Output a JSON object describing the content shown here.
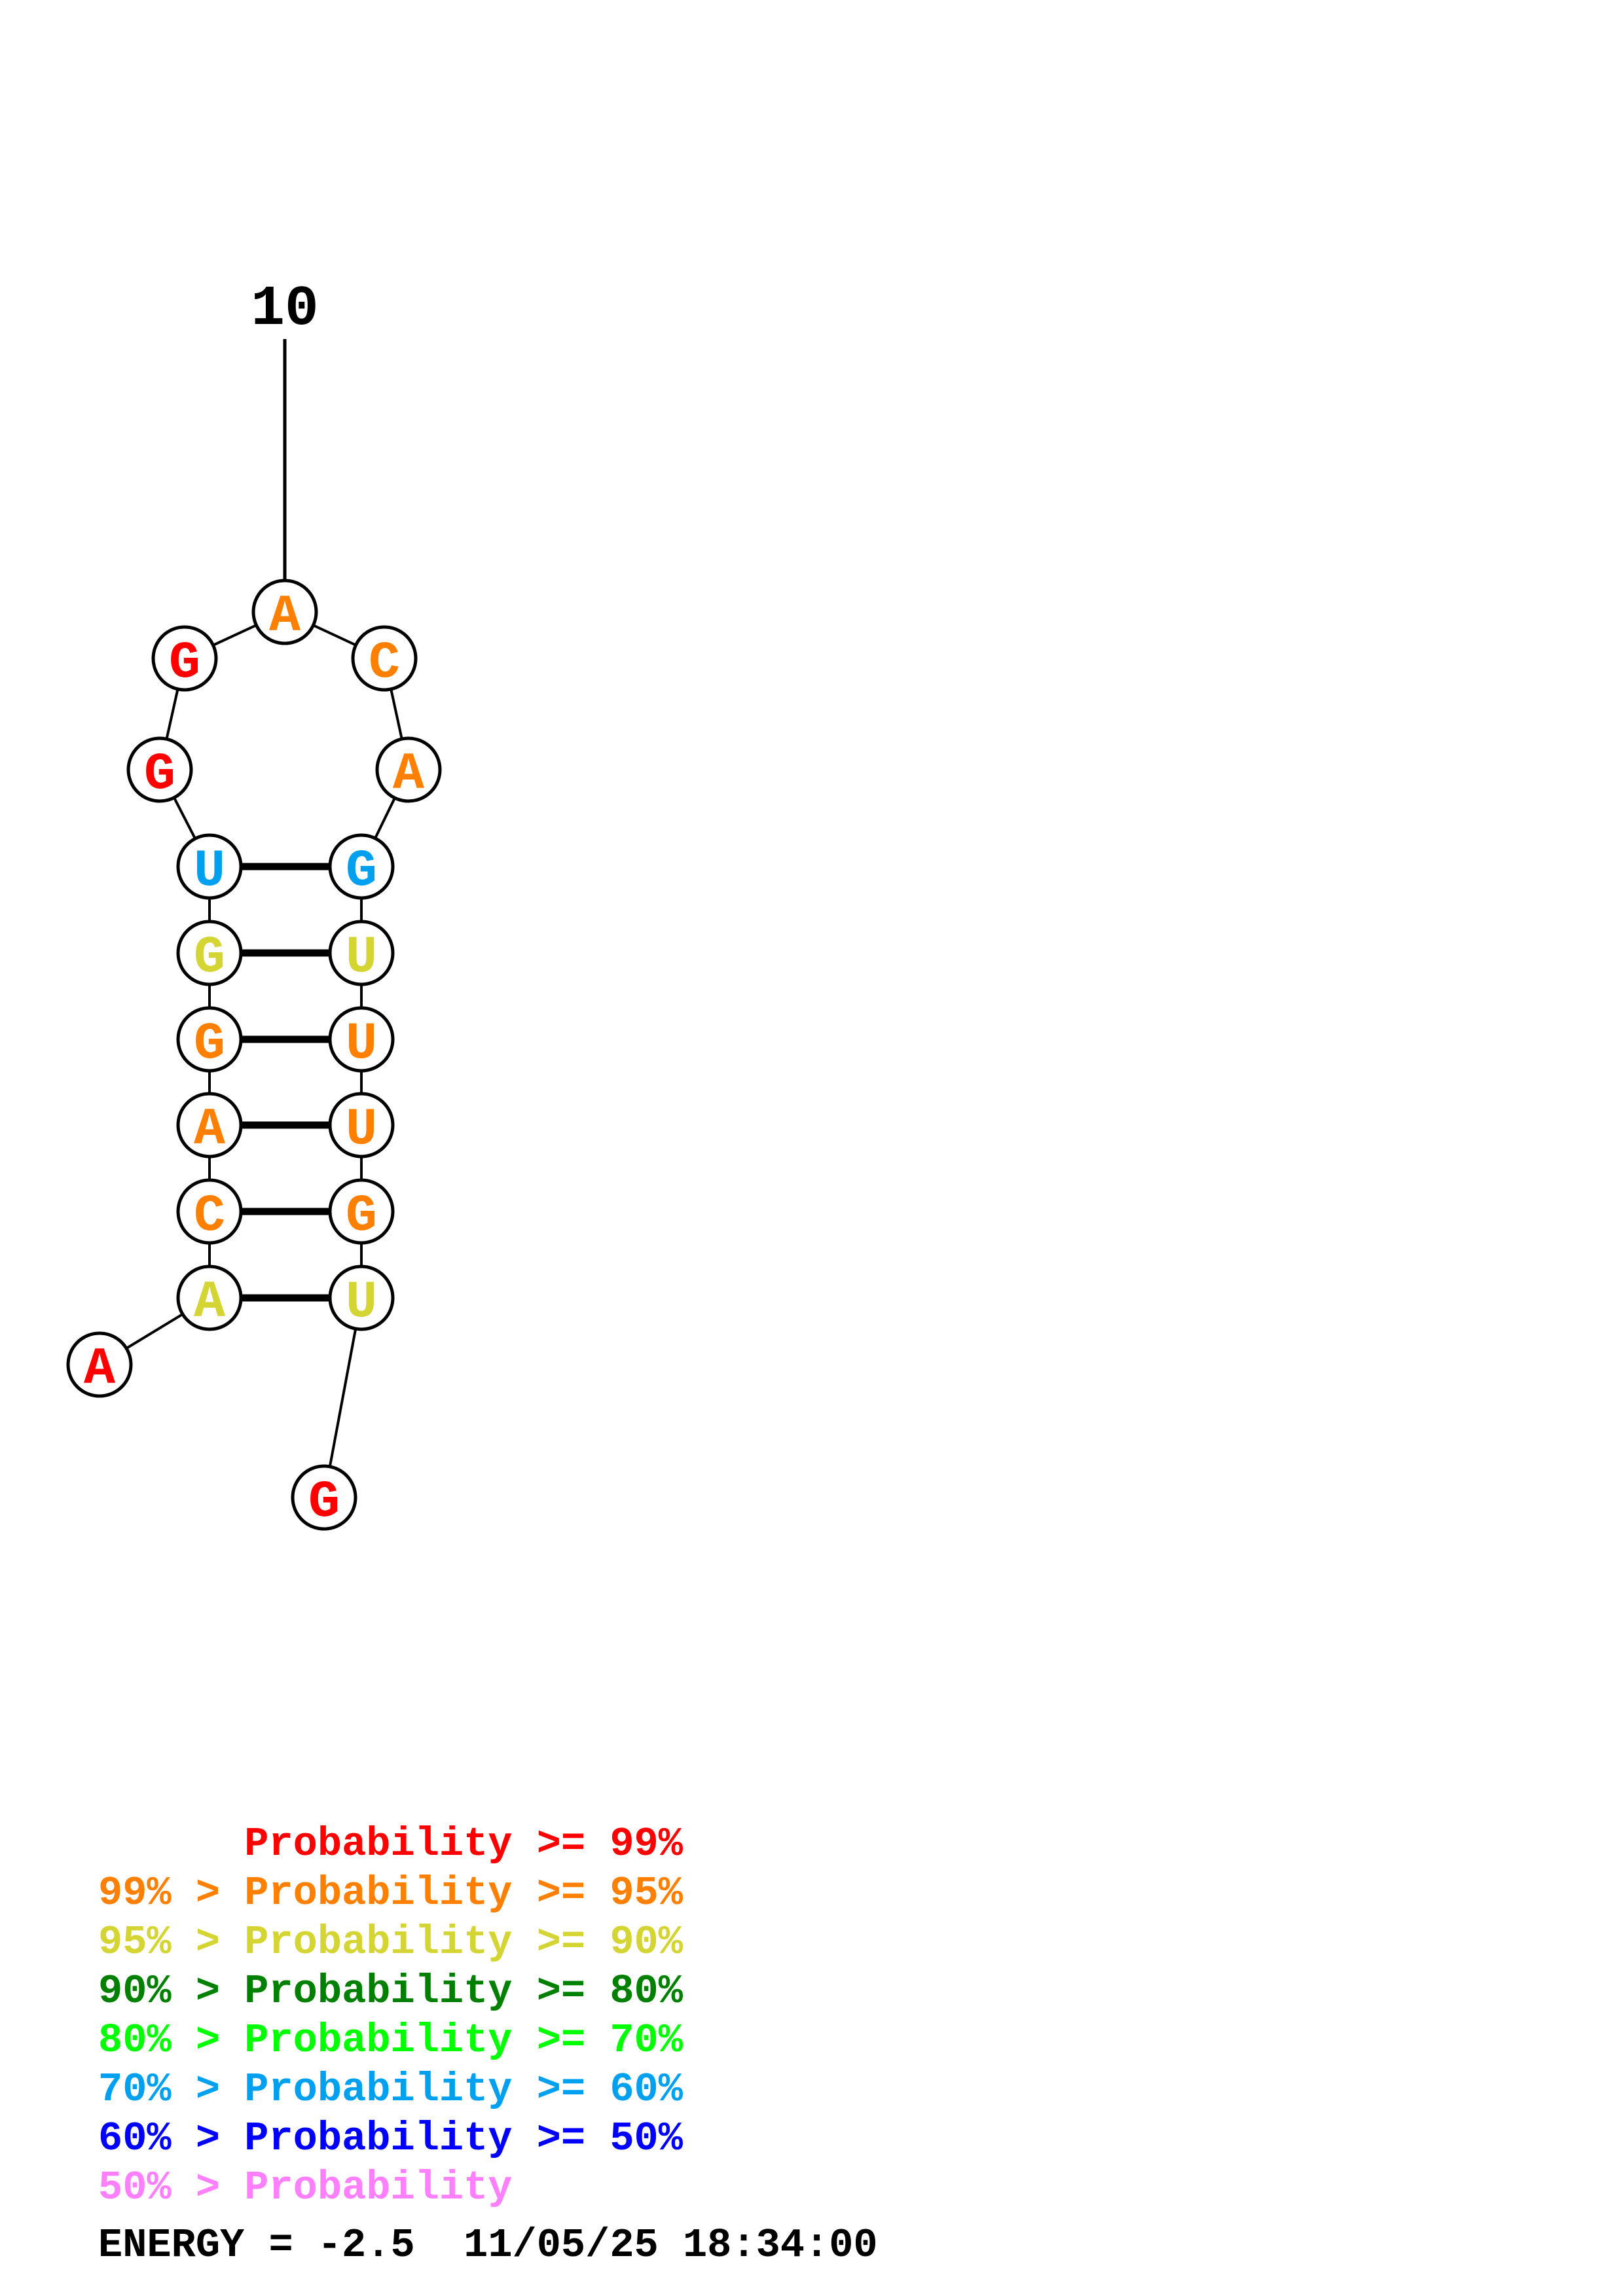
{
  "position_label": "10",
  "colors": {
    "p99": "#ff0000",
    "p95": "#ff8000",
    "p90": "#d4d433",
    "p80": "#008000",
    "p70": "#00ff00",
    "p60": "#00a0f0",
    "p50": "#0000ff",
    "below50": "#ff80ff"
  },
  "nucleotides": [
    {
      "letter": "A",
      "color": "p99"
    },
    {
      "letter": "A",
      "color": "p90"
    },
    {
      "letter": "C",
      "color": "p95"
    },
    {
      "letter": "A",
      "color": "p95"
    },
    {
      "letter": "G",
      "color": "p95"
    },
    {
      "letter": "G",
      "color": "p90"
    },
    {
      "letter": "U",
      "color": "p60"
    },
    {
      "letter": "G",
      "color": "p99"
    },
    {
      "letter": "G",
      "color": "p99"
    },
    {
      "letter": "A",
      "color": "p95"
    },
    {
      "letter": "C",
      "color": "p95"
    },
    {
      "letter": "A",
      "color": "p95"
    },
    {
      "letter": "G",
      "color": "p60"
    },
    {
      "letter": "U",
      "color": "p90"
    },
    {
      "letter": "U",
      "color": "p95"
    },
    {
      "letter": "U",
      "color": "p95"
    },
    {
      "letter": "G",
      "color": "p95"
    },
    {
      "letter": "U",
      "color": "p90"
    },
    {
      "letter": "G",
      "color": "p99"
    }
  ],
  "base_pairs": [
    [
      2,
      18
    ],
    [
      3,
      17
    ],
    [
      4,
      16
    ],
    [
      5,
      15
    ],
    [
      6,
      14
    ],
    [
      7,
      13
    ]
  ],
  "legend": [
    {
      "prefix": "",
      "text": "Probability >= 99%",
      "color": "p99"
    },
    {
      "prefix": "99% > ",
      "text": "Probability >= 95%",
      "color": "p95"
    },
    {
      "prefix": "95% > ",
      "text": "Probability >= 90%",
      "color": "p90"
    },
    {
      "prefix": "90% > ",
      "text": "Probability >= 80%",
      "color": "p80"
    },
    {
      "prefix": "80% > ",
      "text": "Probability >= 70%",
      "color": "p70"
    },
    {
      "prefix": "70% > ",
      "text": "Probability >= 60%",
      "color": "p60"
    },
    {
      "prefix": "60% > ",
      "text": "Probability >= 50%",
      "color": "p50"
    },
    {
      "prefix": "50% > ",
      "text": "Probability",
      "color": "below50"
    }
  ],
  "footer": {
    "energy": "ENERGY = -2.5",
    "timestamp": "11/05/25 18:34:00"
  }
}
